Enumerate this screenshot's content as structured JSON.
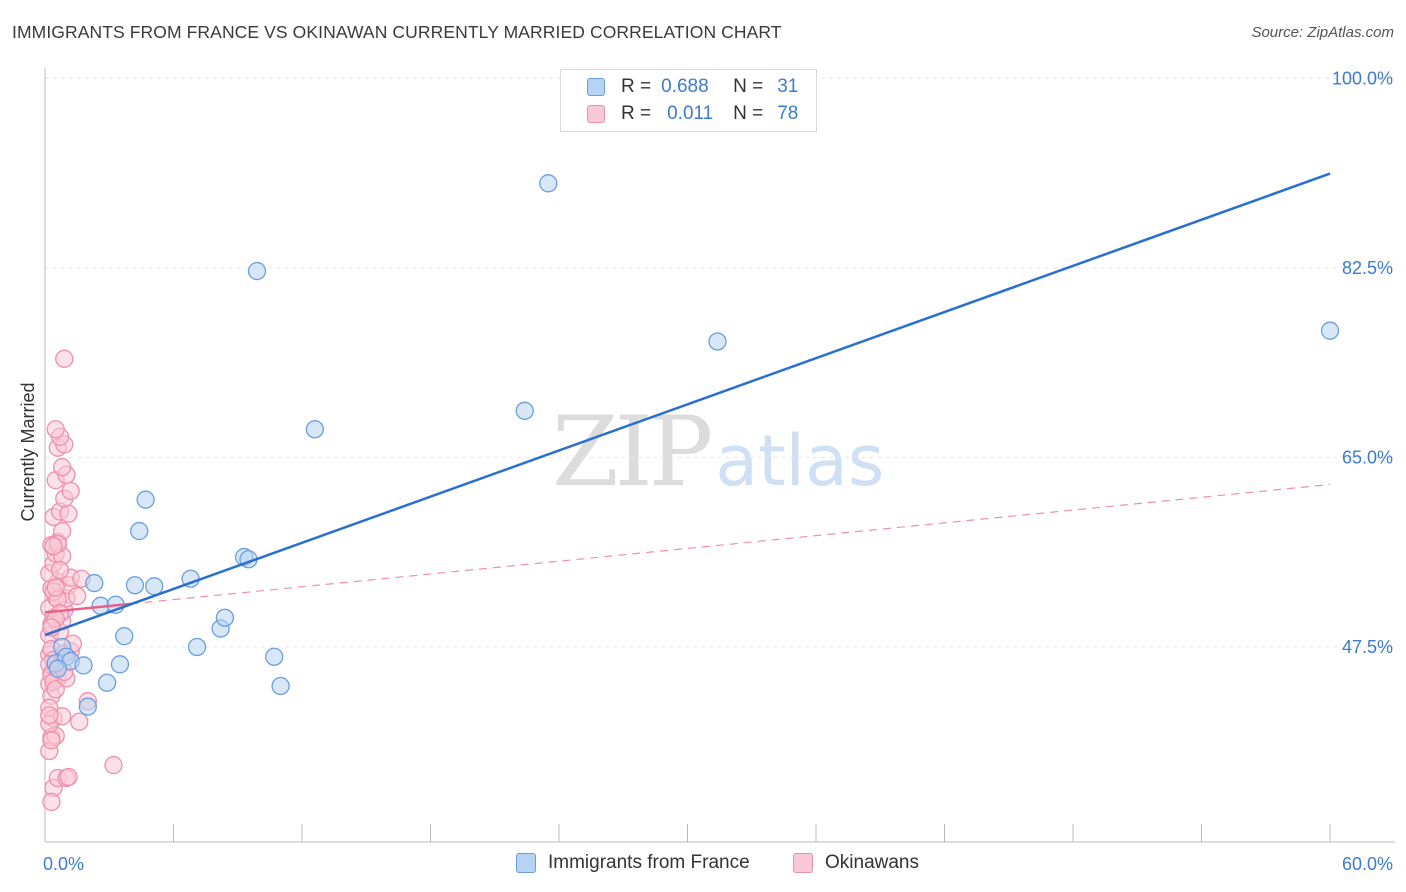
{
  "title": "IMMIGRANTS FROM FRANCE VS OKINAWAN CURRENTLY MARRIED CORRELATION CHART",
  "source": "Source: ZipAtlas.com",
  "watermark": {
    "zip": "ZIP",
    "atlas": "atlas"
  },
  "legend_stats": [
    {
      "r_label": "R =",
      "r_value": "0.688",
      "n_label": "N =",
      "n_value": "31"
    },
    {
      "r_label": "R =",
      "r_value": "0.011",
      "n_label": "N =",
      "n_value": "78"
    }
  ],
  "bottom_legend": [
    {
      "label": "Immigrants from France"
    },
    {
      "label": "Okinawans"
    }
  ],
  "colors": {
    "blue_fill": "#b7d3f3",
    "blue_stroke": "#6a9ee0",
    "blue_line": "#2a6fd0",
    "pink_fill": "#f9c8d6",
    "pink_stroke": "#ee8fac",
    "pink_line": "#e8608a",
    "axis_label": "#3b7bd4",
    "grid": "#e6e6e6"
  },
  "chart_data": {
    "type": "scatter",
    "title": "IMMIGRANTS FROM FRANCE VS OKINAWAN CURRENTLY MARRIED CORRELATION CHART",
    "xlabel": "",
    "ylabel": "Currently Married",
    "xlim": [
      0,
      60
    ],
    "ylim": [
      29.5,
      101.5
    ],
    "x_tick_labels": [
      {
        "value": 0,
        "label": "0.0%"
      },
      {
        "value": 60,
        "label": "60.0%"
      }
    ],
    "x_minor_ticks": [
      6,
      12,
      18,
      24,
      30,
      36,
      42,
      48,
      54,
      60
    ],
    "y_ticks": [
      {
        "value": 47.5,
        "label": "47.5%"
      },
      {
        "value": 65.0,
        "label": "65.0%"
      },
      {
        "value": 82.5,
        "label": "82.5%"
      },
      {
        "value": 100.0,
        "label": "100.0%"
      }
    ],
    "grid": true,
    "series": [
      {
        "name": "Immigrants from France",
        "color": "blue",
        "r": 0.688,
        "n": 31,
        "points": [
          [
            0.5,
            46.0
          ],
          [
            0.8,
            47.5
          ],
          [
            1.0,
            46.6
          ],
          [
            1.2,
            46.2
          ],
          [
            1.8,
            45.8
          ],
          [
            2.0,
            42.0
          ],
          [
            2.3,
            53.4
          ],
          [
            2.6,
            51.3
          ],
          [
            2.9,
            44.2
          ],
          [
            3.3,
            51.4
          ],
          [
            3.5,
            45.9
          ],
          [
            3.7,
            48.5
          ],
          [
            4.2,
            53.2
          ],
          [
            4.4,
            58.2
          ],
          [
            4.7,
            61.1
          ],
          [
            5.1,
            53.1
          ],
          [
            6.8,
            53.8
          ],
          [
            7.1,
            47.5
          ],
          [
            8.2,
            49.2
          ],
          [
            8.4,
            50.2
          ],
          [
            9.3,
            55.8
          ],
          [
            9.5,
            55.6
          ],
          [
            9.9,
            82.2
          ],
          [
            10.7,
            46.6
          ],
          [
            11.0,
            43.9
          ],
          [
            12.6,
            67.6
          ],
          [
            22.4,
            69.3
          ],
          [
            23.5,
            90.3
          ],
          [
            31.4,
            75.7
          ],
          [
            60.0,
            76.7
          ],
          [
            0.6,
            45.5
          ]
        ],
        "trend": {
          "x": [
            0,
            60
          ],
          "y": [
            48.6,
            91.2
          ],
          "style": "solid"
        }
      },
      {
        "name": "Okinawans",
        "color": "pink",
        "r": 0.011,
        "n": 78,
        "points": [
          [
            0.2,
            46.8
          ],
          [
            0.3,
            45.1
          ],
          [
            0.2,
            44.1
          ],
          [
            0.3,
            43.0
          ],
          [
            0.2,
            41.9
          ],
          [
            0.4,
            40.9
          ],
          [
            0.3,
            39.2
          ],
          [
            0.5,
            39.3
          ],
          [
            0.2,
            37.9
          ],
          [
            0.4,
            34.5
          ],
          [
            0.3,
            33.2
          ],
          [
            0.6,
            35.4
          ],
          [
            1.0,
            35.4
          ],
          [
            1.1,
            35.5
          ],
          [
            3.2,
            36.6
          ],
          [
            0.2,
            48.6
          ],
          [
            0.3,
            49.6
          ],
          [
            0.4,
            50.2
          ],
          [
            0.2,
            51.1
          ],
          [
            0.5,
            52.1
          ],
          [
            0.3,
            52.9
          ],
          [
            0.6,
            53.5
          ],
          [
            0.2,
            54.3
          ],
          [
            0.4,
            55.2
          ],
          [
            0.5,
            56.1
          ],
          [
            0.3,
            56.9
          ],
          [
            0.6,
            57.2
          ],
          [
            0.8,
            58.2
          ],
          [
            0.4,
            59.5
          ],
          [
            0.7,
            60.0
          ],
          [
            1.1,
            59.8
          ],
          [
            0.9,
            61.2
          ],
          [
            1.2,
            61.9
          ],
          [
            0.5,
            62.9
          ],
          [
            1.0,
            63.4
          ],
          [
            0.8,
            64.1
          ],
          [
            0.6,
            65.9
          ],
          [
            0.9,
            66.2
          ],
          [
            0.7,
            66.9
          ],
          [
            0.5,
            67.6
          ],
          [
            0.9,
            74.1
          ],
          [
            0.3,
            47.3
          ],
          [
            0.4,
            46.3
          ],
          [
            0.5,
            45.4
          ],
          [
            0.6,
            44.6
          ],
          [
            0.7,
            48.9
          ],
          [
            0.8,
            49.9
          ],
          [
            0.9,
            50.9
          ],
          [
            1.0,
            52.0
          ],
          [
            1.1,
            53.2
          ],
          [
            1.2,
            53.9
          ],
          [
            0.2,
            45.9
          ],
          [
            0.3,
            44.9
          ],
          [
            0.4,
            44.3
          ],
          [
            0.5,
            43.6
          ],
          [
            0.2,
            40.4
          ],
          [
            0.3,
            38.9
          ],
          [
            0.8,
            41.1
          ],
          [
            1.0,
            44.6
          ],
          [
            1.2,
            47.1
          ],
          [
            1.5,
            52.2
          ],
          [
            1.7,
            53.8
          ],
          [
            2.0,
            42.5
          ],
          [
            1.6,
            40.6
          ],
          [
            0.9,
            46.9
          ],
          [
            0.4,
            52.6
          ],
          [
            0.6,
            51.9
          ],
          [
            0.7,
            50.6
          ],
          [
            0.5,
            50.1
          ],
          [
            0.3,
            49.3
          ],
          [
            0.8,
            55.9
          ],
          [
            0.6,
            57.0
          ],
          [
            0.7,
            54.6
          ],
          [
            0.5,
            53.0
          ],
          [
            0.9,
            45.2
          ],
          [
            0.2,
            41.2
          ],
          [
            1.3,
            47.8
          ],
          [
            0.4,
            56.8
          ]
        ],
        "trend": {
          "x": [
            0,
            60
          ],
          "y": [
            50.7,
            62.5
          ],
          "style": "solid-then-dashed",
          "solid_until_x": 4
        }
      }
    ]
  }
}
